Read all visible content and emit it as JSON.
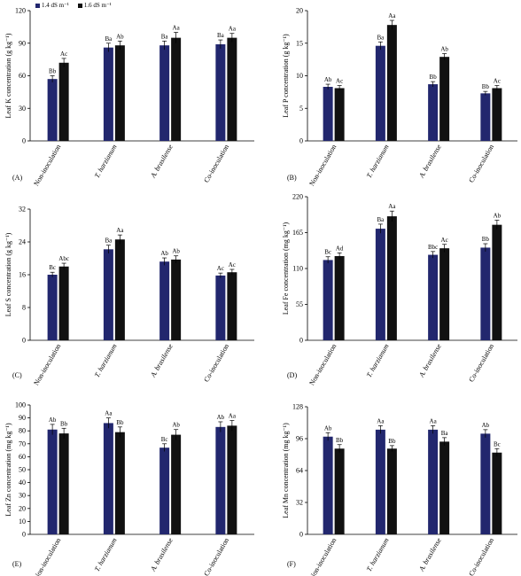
{
  "legend": {
    "items": [
      {
        "label": "1.4 dS m⁻¹",
        "color": "#22276e"
      },
      {
        "label": "1.6 dS m⁻¹",
        "color": "#111111"
      }
    ]
  },
  "chart_data": [
    {
      "type": "bar",
      "panel": "(A)",
      "ylabel": "Leaf  K concentration (g kg⁻¹)",
      "ylim": [
        0,
        120
      ],
      "yticks": [
        "0",
        "30",
        "60",
        "90",
        "120"
      ],
      "categories": [
        "Non-inoculation",
        "T. harzianum",
        "A. brasilense",
        "Co-inoculation"
      ],
      "series": [
        {
          "values": [
            57,
            86,
            88,
            89
          ],
          "errors": [
            3,
            4,
            4,
            4
          ],
          "letters": [
            "Bb",
            "Ba",
            "Ba",
            "Ba"
          ]
        },
        {
          "values": [
            72,
            88,
            95,
            95
          ],
          "errors": [
            4,
            4,
            5,
            4
          ],
          "letters": [
            "Ac",
            "Ab",
            "Aa",
            "Aa"
          ]
        }
      ]
    },
    {
      "type": "bar",
      "panel": "(B)",
      "ylabel": "Leaf  P concentration (g kg⁻¹)",
      "ylim": [
        0,
        20
      ],
      "yticks": [
        "0",
        "5",
        "10",
        "15",
        "20"
      ],
      "categories": [
        "Non-inoculation",
        "T. harzianum",
        "A. brasilense",
        "Co-inoculation"
      ],
      "series": [
        {
          "values": [
            8.3,
            14.6,
            8.7,
            7.3
          ],
          "errors": [
            0.4,
            0.6,
            0.4,
            0.3
          ],
          "letters": [
            "Ab",
            "Ba",
            "Bb",
            "Bb"
          ]
        },
        {
          "values": [
            8.1,
            17.8,
            12.9,
            8.1
          ],
          "errors": [
            0.4,
            0.7,
            0.5,
            0.4
          ],
          "letters": [
            "Ac",
            "Aa",
            "Ab",
            "Ac"
          ]
        }
      ]
    },
    {
      "type": "bar",
      "panel": "(C)",
      "ylabel": "Leaf  S concentration (g kg⁻¹)",
      "ylim": [
        0,
        32
      ],
      "yticks": [
        "0",
        "8",
        "16",
        "24",
        "32"
      ],
      "categories": [
        "Non-inoculation",
        "T. harzianum",
        "A. brasilense",
        "Co-inoculation"
      ],
      "series": [
        {
          "values": [
            16.0,
            22.2,
            19.2,
            15.8
          ],
          "errors": [
            0.6,
            1.0,
            0.9,
            0.6
          ],
          "letters": [
            "Bc",
            "Ba",
            "Ab",
            "Ac"
          ]
        },
        {
          "values": [
            18.0,
            24.6,
            19.7,
            16.6
          ],
          "errors": [
            0.8,
            1.1,
            0.9,
            0.7
          ],
          "letters": [
            "Abc",
            "Aa",
            "Ab",
            "Ac"
          ]
        }
      ]
    },
    {
      "type": "bar",
      "panel": "(D)",
      "ylabel": "Leaf  Fe concentration (mg kg⁻¹)",
      "ylim": [
        0,
        220
      ],
      "yticks": [
        "0",
        "55",
        "110",
        "165",
        "220"
      ],
      "categories": [
        "Non-inoculation",
        "T. harzianum",
        "A. brasilense",
        "Co-inoculation"
      ],
      "series": [
        {
          "values": [
            123,
            171,
            131,
            142
          ],
          "errors": [
            5,
            7,
            5,
            6
          ],
          "letters": [
            "Bc",
            "Ba",
            "Bbc",
            "Bb"
          ]
        },
        {
          "values": [
            129,
            190,
            141,
            177
          ],
          "errors": [
            5,
            8,
            6,
            7
          ],
          "letters": [
            "Ad",
            "Aa",
            "Ac",
            "Ab"
          ]
        }
      ]
    },
    {
      "type": "bar",
      "panel": "(E)",
      "ylabel": "Leaf  Zn concentration (mg kg⁻¹)",
      "ylim": [
        0,
        100
      ],
      "yticks": [
        "0",
        "10",
        "20",
        "30",
        "40",
        "50",
        "60",
        "70",
        "80",
        "90",
        "100"
      ],
      "categories": [
        "Non-inoculation",
        "T. harzianum",
        "A. brasilense",
        "Co-inoculation"
      ],
      "series": [
        {
          "values": [
            81,
            86,
            67,
            83
          ],
          "errors": [
            4,
            4,
            3,
            4
          ],
          "letters": [
            "Ab",
            "Aa",
            "Bc",
            "Ab"
          ]
        },
        {
          "values": [
            78,
            79,
            77,
            84
          ],
          "errors": [
            4,
            4,
            4,
            4
          ],
          "letters": [
            "Bb",
            "Bb",
            "Ab",
            "Aa"
          ]
        }
      ]
    },
    {
      "type": "bar",
      "panel": "(F)",
      "ylabel": "Leaf  Mn concentration (mg kg⁻¹)",
      "ylim": [
        0,
        128
      ],
      "yticks": [
        "0",
        "32",
        "64",
        "96",
        "128"
      ],
      "categories": [
        "Non-inoculation",
        "T. harzianum",
        "A. brasilense",
        "Co-inoculation"
      ],
      "series": [
        {
          "values": [
            98,
            105,
            105,
            101
          ],
          "errors": [
            4,
            4,
            4,
            4
          ],
          "letters": [
            "Ab",
            "Aa",
            "Aa",
            "Ab"
          ]
        },
        {
          "values": [
            86,
            86,
            93,
            82
          ],
          "errors": [
            4,
            3,
            4,
            4
          ],
          "letters": [
            "Bb",
            "Bb",
            "Ba",
            "Bc"
          ]
        }
      ]
    }
  ]
}
